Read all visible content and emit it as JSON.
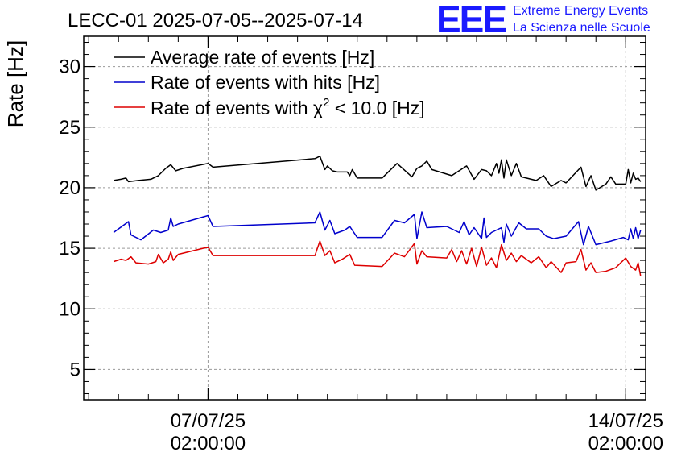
{
  "header": {
    "title": "LECC-01 2025-07-05--2025-07-14",
    "logo_text": "EEE",
    "logo_line1": "Extreme Energy Events",
    "logo_line2": "La Scienza nelle Scuole",
    "logo_color": "#1a1aff"
  },
  "chart_data": {
    "type": "line",
    "ylabel": "Rate [Hz]",
    "ylim": [
      2.5,
      32.5
    ],
    "y_ticks": [
      "5",
      "10",
      "15",
      "20",
      "25",
      "30"
    ],
    "y_tick_values": [
      5,
      10,
      15,
      20,
      25,
      30
    ],
    "xlim": [
      "2025-07-05T00:00",
      "2025-07-14T10:00"
    ],
    "x_ticks": [
      {
        "value": "2025-07-07T02:00",
        "line1": "07/07/25",
        "line2": "02:00:00"
      },
      {
        "value": "2025-07-14T02:00",
        "line1": "14/07/25",
        "line2": "02:00:00"
      }
    ],
    "grid": true,
    "legend_placement": "top-left",
    "series": [
      {
        "name": "Average rate of events [Hz]",
        "legend_label": "Average rate of events [Hz]",
        "color": "#000000",
        "points": [
          [
            "2025-07-05T12:00",
            20.6
          ],
          [
            "2025-07-05T15:00",
            20.7
          ],
          [
            "2025-07-05T17:00",
            20.8
          ],
          [
            "2025-07-05T18:00",
            20.5
          ],
          [
            "2025-07-05T22:00",
            20.6
          ],
          [
            "2025-07-06T03:00",
            20.7
          ],
          [
            "2025-07-06T06:00",
            21.0
          ],
          [
            "2025-07-06T09:00",
            21.6
          ],
          [
            "2025-07-06T11:00",
            21.9
          ],
          [
            "2025-07-06T13:00",
            21.4
          ],
          [
            "2025-07-06T16:00",
            21.6
          ],
          [
            "2025-07-07T02:00",
            22.0
          ],
          [
            "2025-07-07T04:00",
            21.7
          ],
          [
            "2025-07-08T21:00",
            22.4
          ],
          [
            "2025-07-08T23:00",
            22.6
          ],
          [
            "2025-07-09T01:00",
            21.5
          ],
          [
            "2025-07-09T02:00",
            21.8
          ],
          [
            "2025-07-09T04:00",
            21.4
          ],
          [
            "2025-07-09T06:00",
            21.3
          ],
          [
            "2025-07-09T10:00",
            21.3
          ],
          [
            "2025-07-09T11:00",
            21.0
          ],
          [
            "2025-07-09T12:00",
            21.5
          ],
          [
            "2025-07-09T14:00",
            20.8
          ],
          [
            "2025-07-10T00:00",
            20.8
          ],
          [
            "2025-07-10T06:00",
            22.0
          ],
          [
            "2025-07-10T12:00",
            20.9
          ],
          [
            "2025-07-10T14:00",
            21.6
          ],
          [
            "2025-07-10T16:00",
            21.8
          ],
          [
            "2025-07-10T18:00",
            22.2
          ],
          [
            "2025-07-10T20:00",
            21.5
          ],
          [
            "2025-07-11T04:00",
            21.0
          ],
          [
            "2025-07-11T10:00",
            21.8
          ],
          [
            "2025-07-11T13:00",
            20.7
          ],
          [
            "2025-07-11T16:00",
            21.5
          ],
          [
            "2025-07-11T18:00",
            21.4
          ],
          [
            "2025-07-11T20:00",
            21.0
          ],
          [
            "2025-07-11T22:00",
            22.0
          ],
          [
            "2025-07-11T23:00",
            21.2
          ],
          [
            "2025-07-12T00:00",
            22.3
          ],
          [
            "2025-07-12T01:00",
            20.8
          ],
          [
            "2025-07-12T02:00",
            22.3
          ],
          [
            "2025-07-12T04:00",
            21.0
          ],
          [
            "2025-07-12T06:00",
            22.0
          ],
          [
            "2025-07-12T08:00",
            20.9
          ],
          [
            "2025-07-12T14:00",
            20.6
          ],
          [
            "2025-07-12T17:00",
            21.0
          ],
          [
            "2025-07-12T20:00",
            20.1
          ],
          [
            "2025-07-13T00:00",
            20.6
          ],
          [
            "2025-07-13T02:00",
            20.4
          ],
          [
            "2025-07-13T08:00",
            21.7
          ],
          [
            "2025-07-13T10:00",
            20.1
          ],
          [
            "2025-07-13T12:00",
            21.0
          ],
          [
            "2025-07-13T14:00",
            19.8
          ],
          [
            "2025-07-13T18:00",
            20.3
          ],
          [
            "2025-07-13T20:00",
            20.9
          ],
          [
            "2025-07-13T22:00",
            20.3
          ],
          [
            "2025-07-14T02:00",
            20.3
          ],
          [
            "2025-07-14T03:00",
            21.5
          ],
          [
            "2025-07-14T04:00",
            20.4
          ],
          [
            "2025-07-14T05:00",
            21.2
          ],
          [
            "2025-07-14T06:00",
            20.7
          ],
          [
            "2025-07-14T07:00",
            20.8
          ],
          [
            "2025-07-14T08:00",
            20.5
          ]
        ]
      },
      {
        "name": "Rate of events with hits [Hz]",
        "legend_label": "Rate of events with hits [Hz]",
        "color": "#0000cc",
        "points": [
          [
            "2025-07-05T12:00",
            16.3
          ],
          [
            "2025-07-05T18:00",
            17.2
          ],
          [
            "2025-07-05T19:00",
            16.1
          ],
          [
            "2025-07-05T23:00",
            15.7
          ],
          [
            "2025-07-06T04:00",
            16.5
          ],
          [
            "2025-07-06T07:00",
            16.3
          ],
          [
            "2025-07-06T10:00",
            16.5
          ],
          [
            "2025-07-06T11:00",
            17.5
          ],
          [
            "2025-07-06T12:00",
            16.8
          ],
          [
            "2025-07-06T14:00",
            17.0
          ],
          [
            "2025-07-07T02:00",
            17.7
          ],
          [
            "2025-07-07T04:00",
            16.8
          ],
          [
            "2025-07-08T21:00",
            17.1
          ],
          [
            "2025-07-08T23:00",
            18.0
          ],
          [
            "2025-07-09T01:00",
            16.5
          ],
          [
            "2025-07-09T03:00",
            17.3
          ],
          [
            "2025-07-09T05:00",
            16.2
          ],
          [
            "2025-07-09T09:00",
            16.5
          ],
          [
            "2025-07-09T11:00",
            16.8
          ],
          [
            "2025-07-09T14:00",
            15.9
          ],
          [
            "2025-07-10T00:00",
            15.9
          ],
          [
            "2025-07-10T05:00",
            17.3
          ],
          [
            "2025-07-10T09:00",
            17.1
          ],
          [
            "2025-07-10T13:00",
            17.8
          ],
          [
            "2025-07-10T14:00",
            15.8
          ],
          [
            "2025-07-10T16:00",
            18.0
          ],
          [
            "2025-07-10T18:00",
            16.7
          ],
          [
            "2025-07-11T02:00",
            16.8
          ],
          [
            "2025-07-11T07:00",
            16.3
          ],
          [
            "2025-07-11T09:00",
            17.2
          ],
          [
            "2025-07-11T11:00",
            16.1
          ],
          [
            "2025-07-11T13:00",
            16.7
          ],
          [
            "2025-07-11T16:00",
            15.8
          ],
          [
            "2025-07-11T17:00",
            17.5
          ],
          [
            "2025-07-11T18:00",
            15.9
          ],
          [
            "2025-07-11T20:00",
            16.3
          ],
          [
            "2025-07-12T00:00",
            16.7
          ],
          [
            "2025-07-12T01:00",
            15.5
          ],
          [
            "2025-07-12T02:00",
            17.0
          ],
          [
            "2025-07-12T04:00",
            16.0
          ],
          [
            "2025-07-12T07:00",
            17.1
          ],
          [
            "2025-07-12T10:00",
            16.6
          ],
          [
            "2025-07-12T15:00",
            16.6
          ],
          [
            "2025-07-12T18:00",
            16.0
          ],
          [
            "2025-07-12T21:00",
            15.8
          ],
          [
            "2025-07-13T02:00",
            16.0
          ],
          [
            "2025-07-13T07:00",
            17.2
          ],
          [
            "2025-07-13T09:00",
            15.3
          ],
          [
            "2025-07-13T11:00",
            16.8
          ],
          [
            "2025-07-13T14:00",
            15.3
          ],
          [
            "2025-07-13T20:00",
            15.6
          ],
          [
            "2025-07-14T01:00",
            15.9
          ],
          [
            "2025-07-14T03:00",
            15.7
          ],
          [
            "2025-07-14T04:00",
            16.6
          ],
          [
            "2025-07-14T05:00",
            15.8
          ],
          [
            "2025-07-14T06:00",
            16.7
          ],
          [
            "2025-07-14T07:00",
            15.8
          ],
          [
            "2025-07-14T08:00",
            16.5
          ]
        ]
      },
      {
        "name": "Rate of events with χ2 < 10.0 [Hz]",
        "legend_label": "Rate of events with χ",
        "legend_sup": "2",
        "legend_suffix": " < 10.0 [Hz]",
        "color": "#dd0000",
        "points": [
          [
            "2025-07-05T12:00",
            13.9
          ],
          [
            "2025-07-05T15:00",
            14.1
          ],
          [
            "2025-07-05T17:00",
            14.0
          ],
          [
            "2025-07-05T19:00",
            14.3
          ],
          [
            "2025-07-05T21:00",
            13.8
          ],
          [
            "2025-07-06T02:00",
            13.7
          ],
          [
            "2025-07-06T05:00",
            13.9
          ],
          [
            "2025-07-06T06:00",
            14.5
          ],
          [
            "2025-07-06T08:00",
            13.8
          ],
          [
            "2025-07-06T10:00",
            14.1
          ],
          [
            "2025-07-06T11:00",
            14.7
          ],
          [
            "2025-07-06T12:00",
            14.0
          ],
          [
            "2025-07-06T14:00",
            14.5
          ],
          [
            "2025-07-07T02:00",
            15.1
          ],
          [
            "2025-07-07T04:00",
            14.4
          ],
          [
            "2025-07-08T21:00",
            14.4
          ],
          [
            "2025-07-08T23:00",
            15.6
          ],
          [
            "2025-07-09T01:00",
            14.4
          ],
          [
            "2025-07-09T03:00",
            14.8
          ],
          [
            "2025-07-09T05:00",
            13.8
          ],
          [
            "2025-07-09T08:00",
            14.1
          ],
          [
            "2025-07-09T11:00",
            14.5
          ],
          [
            "2025-07-09T13:00",
            13.6
          ],
          [
            "2025-07-10T00:00",
            13.5
          ],
          [
            "2025-07-10T05:00",
            14.6
          ],
          [
            "2025-07-10T09:00",
            14.3
          ],
          [
            "2025-07-10T13:00",
            15.4
          ],
          [
            "2025-07-10T14:00",
            13.7
          ],
          [
            "2025-07-10T16:00",
            14.8
          ],
          [
            "2025-07-10T18:00",
            14.3
          ],
          [
            "2025-07-11T02:00",
            14.2
          ],
          [
            "2025-07-11T04:00",
            14.9
          ],
          [
            "2025-07-11T06:00",
            13.9
          ],
          [
            "2025-07-11T08:00",
            14.8
          ],
          [
            "2025-07-11T10:00",
            13.7
          ],
          [
            "2025-07-11T12:00",
            15.0
          ],
          [
            "2025-07-11T14:00",
            13.5
          ],
          [
            "2025-07-11T16:00",
            15.1
          ],
          [
            "2025-07-11T18:00",
            13.6
          ],
          [
            "2025-07-11T20:00",
            14.2
          ],
          [
            "2025-07-11T22:00",
            13.4
          ],
          [
            "2025-07-12T00:00",
            15.3
          ],
          [
            "2025-07-12T02:00",
            14.0
          ],
          [
            "2025-07-12T04:00",
            14.6
          ],
          [
            "2025-07-12T06:00",
            13.9
          ],
          [
            "2025-07-12T08:00",
            14.4
          ],
          [
            "2025-07-12T12:00",
            13.8
          ],
          [
            "2025-07-12T15:00",
            14.3
          ],
          [
            "2025-07-12T18:00",
            13.4
          ],
          [
            "2025-07-12T20:00",
            13.9
          ],
          [
            "2025-07-13T00:00",
            13.0
          ],
          [
            "2025-07-13T02:00",
            13.8
          ],
          [
            "2025-07-13T06:00",
            13.9
          ],
          [
            "2025-07-13T08:00",
            14.9
          ],
          [
            "2025-07-13T10:00",
            13.2
          ],
          [
            "2025-07-13T12:00",
            13.8
          ],
          [
            "2025-07-13T14:00",
            13.0
          ],
          [
            "2025-07-13T18:00",
            13.1
          ],
          [
            "2025-07-13T22:00",
            13.4
          ],
          [
            "2025-07-14T02:00",
            14.2
          ],
          [
            "2025-07-14T04:00",
            13.5
          ],
          [
            "2025-07-14T06:00",
            13.2
          ],
          [
            "2025-07-14T07:00",
            13.8
          ],
          [
            "2025-07-14T08:00",
            12.7
          ]
        ]
      }
    ]
  }
}
